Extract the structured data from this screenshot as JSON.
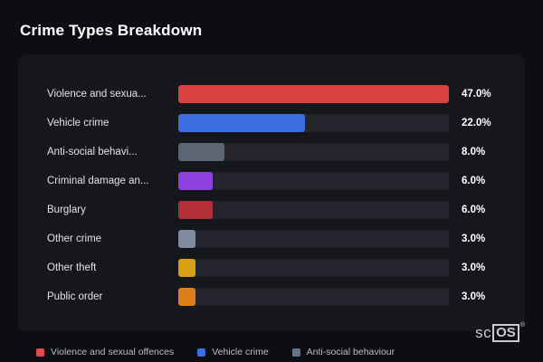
{
  "page": {
    "title": "Crime Types Breakdown"
  },
  "chart_data": {
    "type": "bar",
    "orientation": "horizontal",
    "title": "Crime Types Breakdown",
    "categories": [
      "Violence and sexua...",
      "Vehicle crime",
      "Anti-social behavi...",
      "Criminal damage an...",
      "Burglary",
      "Other crime",
      "Other theft",
      "Public order"
    ],
    "values": [
      47.0,
      22.0,
      8.0,
      6.0,
      6.0,
      3.0,
      3.0,
      3.0
    ],
    "value_labels": [
      "47.0%",
      "22.0%",
      "8.0%",
      "6.0%",
      "6.0%",
      "3.0%",
      "3.0%",
      "3.0%"
    ],
    "bar_colors": [
      "#d94141",
      "#3b6fe0",
      "#5c6573",
      "#8d42df",
      "#b12f35",
      "#7e8ba0",
      "#d99f13",
      "#df7c1b"
    ],
    "xlim": [
      0,
      47
    ],
    "grid": false,
    "legend_position": "bottom",
    "legend": [
      {
        "label": "Violence and sexual offences",
        "color": "#e04a4a"
      },
      {
        "label": "Vehicle crime",
        "color": "#3b6fe0"
      },
      {
        "label": "Anti-social behaviour",
        "color": "#64748b"
      }
    ]
  },
  "brand": {
    "logo_text_1": "sc",
    "logo_text_2": "OS",
    "registered_mark": "®"
  },
  "colors": {
    "page_background": "#0d0e13",
    "panel_background": "#16171d",
    "track_background": "#24252c",
    "title_text": "#ffffff",
    "label_text": "#e2e3e6",
    "legend_text": "#b9bcc2"
  }
}
